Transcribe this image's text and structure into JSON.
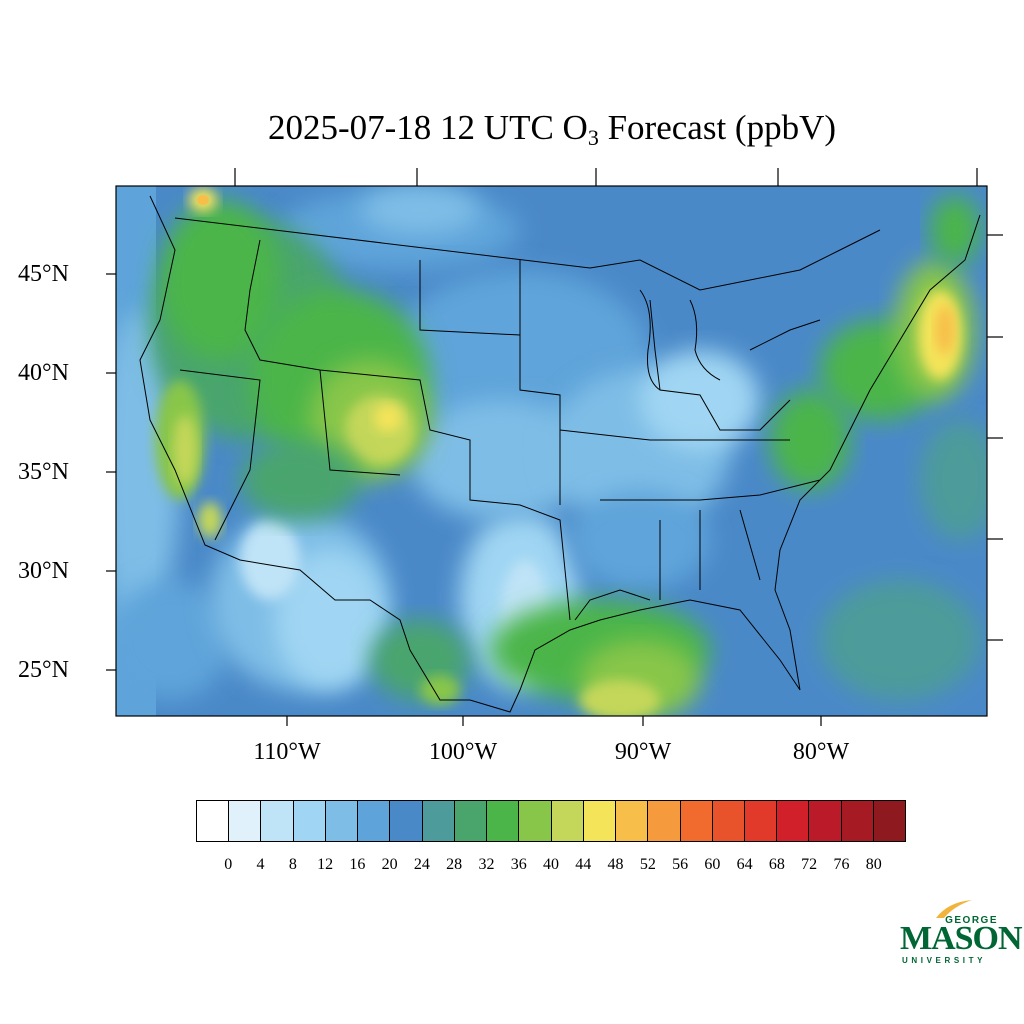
{
  "title": {
    "prefix": "2025-07-18 12 UTC O",
    "subscript": "3",
    "suffix": " Forecast (ppbV)"
  },
  "lat_labels": [
    "45°N",
    "40°N",
    "35°N",
    "30°N",
    "25°N"
  ],
  "lon_labels": [
    "110°W",
    "100°W",
    "90°W",
    "80°W"
  ],
  "colorbar": {
    "colors": [
      "#ffffff",
      "#e0f1fb",
      "#bfe3f7",
      "#a0d6f3",
      "#7ebde6",
      "#5ea4da",
      "#4a89c8",
      "#4d9b9a",
      "#4aa56d",
      "#4cb54a",
      "#88c64a",
      "#c4d75a",
      "#f4e45a",
      "#f7bf4a",
      "#f59a3d",
      "#f16b2f",
      "#e8532c",
      "#e1392a",
      "#d2202a",
      "#bb1b28",
      "#a51a23",
      "#8e1a1f"
    ],
    "labels": [
      "0",
      "4",
      "8",
      "12",
      "16",
      "20",
      "24",
      "28",
      "32",
      "36",
      "40",
      "44",
      "48",
      "52",
      "56",
      "60",
      "64",
      "68",
      "72",
      "76",
      "80"
    ]
  },
  "logo": {
    "top": "GEORGE",
    "main": "MASON",
    "bottom": "UNIVERSITY"
  }
}
